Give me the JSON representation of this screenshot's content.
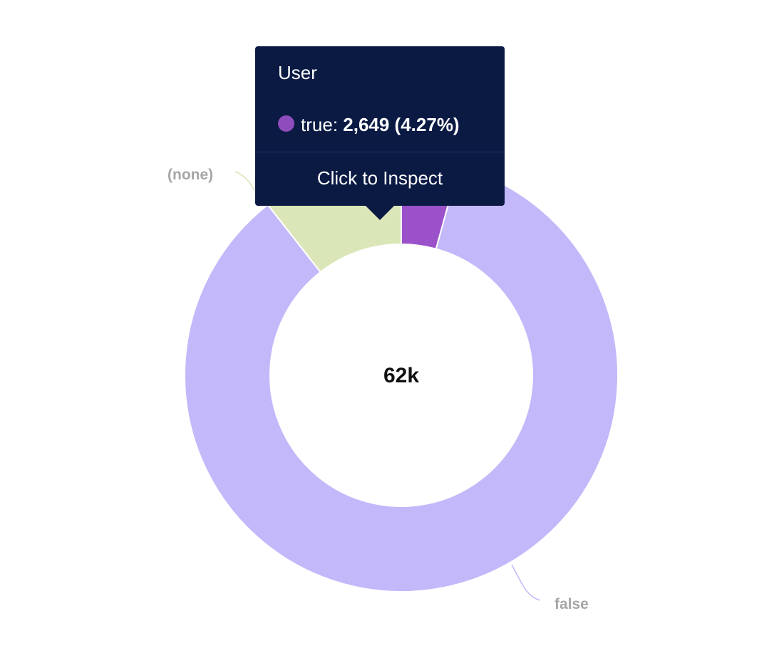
{
  "chart_data": {
    "type": "pie",
    "style": "donut",
    "center_label": "62k",
    "slices": [
      {
        "label": "true",
        "value": 2649,
        "percent": 4.27,
        "color": "#9b51c9",
        "show_label": false
      },
      {
        "label": "false",
        "value": 52800,
        "percent": 85.2,
        "color": "#c2b8fa",
        "show_label": true
      },
      {
        "label": "(none)",
        "value": 6550,
        "percent": 10.5,
        "color": "#dbe6b8",
        "show_label": true
      }
    ],
    "leader_colors": {
      "false": "#c2b8fa",
      "(none)": "#dbe6b8"
    }
  },
  "tooltip": {
    "title": "User",
    "series_label": "true",
    "value_text": "2,649 (4.27%)",
    "dot_color": "#8e4cbc",
    "action": "Click to Inspect"
  }
}
